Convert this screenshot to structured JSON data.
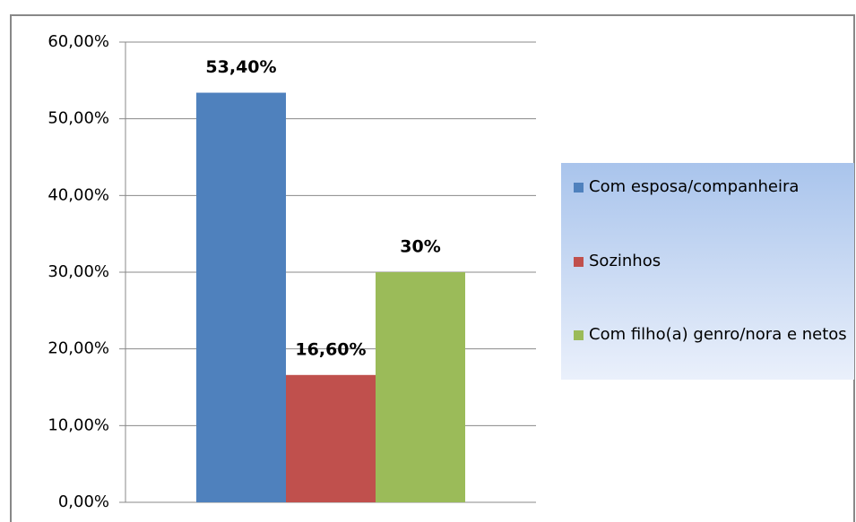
{
  "chart_data": {
    "type": "bar",
    "categories": [
      null
    ],
    "series": [
      {
        "name": "Com esposa/companheira",
        "color": "#4f81bd",
        "values": [
          53.4
        ],
        "value_labels": [
          "53,40%"
        ]
      },
      {
        "name": "Sozinhos",
        "color": "#c0504d",
        "values": [
          16.6
        ],
        "value_labels": [
          "16,60%"
        ]
      },
      {
        "name": "Com filho(a) genro/nora e netos",
        "color": "#9bbb59",
        "values": [
          30
        ],
        "value_labels": [
          "30%"
        ]
      }
    ],
    "ylim": [
      0,
      60
    ],
    "yticks": [
      {
        "value": 0,
        "label": "0,00%"
      },
      {
        "value": 10,
        "label": "10,00%"
      },
      {
        "value": 20,
        "label": "20,00%"
      },
      {
        "value": 30,
        "label": "30,00%"
      },
      {
        "value": 40,
        "label": "40,00%"
      },
      {
        "value": 50,
        "label": "50,00%"
      },
      {
        "value": 60,
        "label": "60,00%"
      }
    ],
    "grid": true,
    "legend": "right"
  }
}
